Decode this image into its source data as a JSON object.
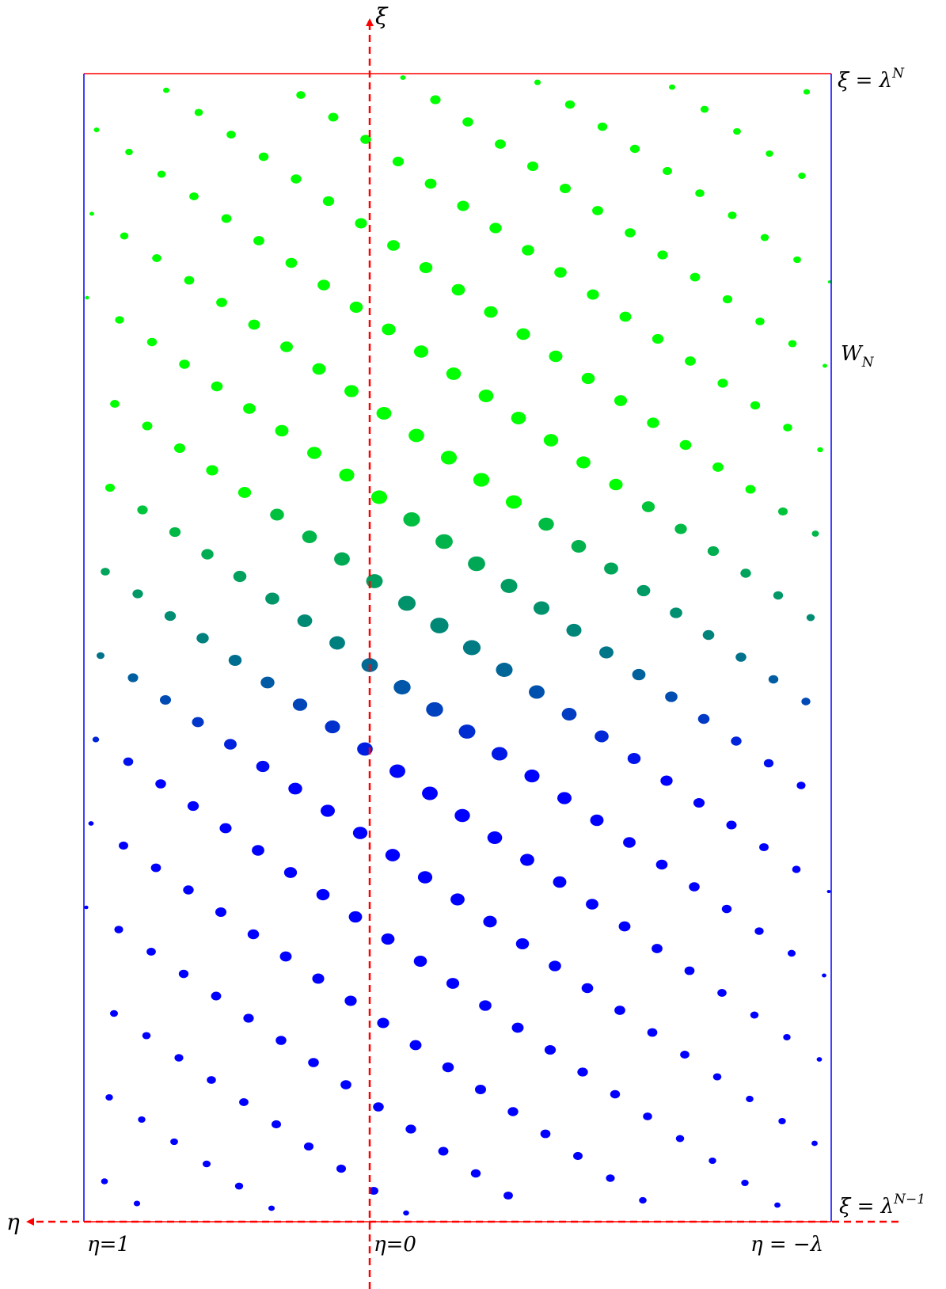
{
  "labels": {
    "axis_xi": "ξ",
    "axis_eta": "η",
    "top_bound": "ξ = λ",
    "top_bound_exp": "N",
    "bottom_bound": "ξ = λ",
    "bottom_bound_exp": "N−1",
    "region": "W",
    "region_sub": "N",
    "eta_one": "η=1",
    "eta_zero": "η=0",
    "eta_neg_lambda": "η = −λ"
  },
  "colors": {
    "axis": "#ff0000",
    "horizontal_bounds": "#ff0000",
    "vertical_bounds": "#0000ff",
    "dot_top": "#00ff00",
    "dot_mid": "#007f7f",
    "dot_bottom": "#0000ff"
  }
}
